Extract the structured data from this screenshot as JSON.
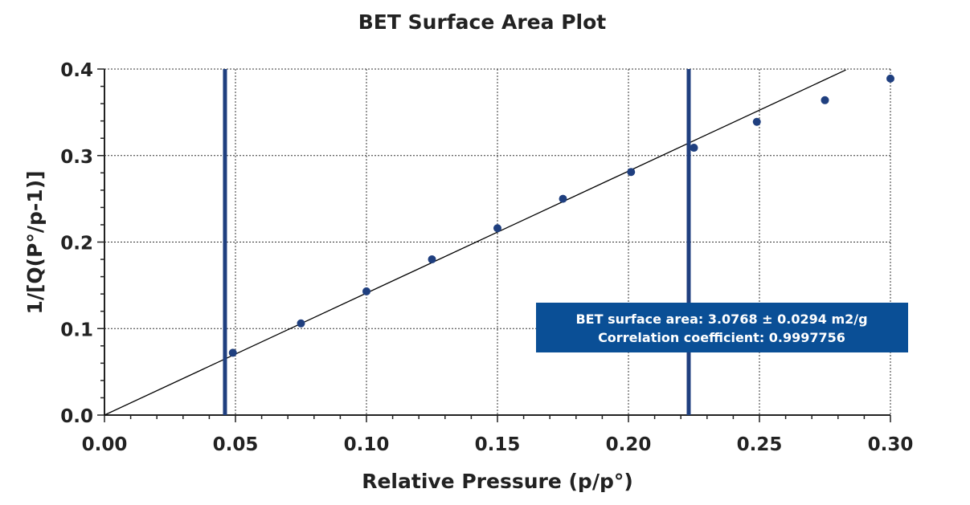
{
  "chart_data": {
    "type": "scatter",
    "title": "BET Surface Area Plot",
    "xlabel": "Relative Pressure (p/p°)",
    "ylabel": "1/[Q(P°/p-1)]",
    "xlim": [
      0.0,
      0.3
    ],
    "ylim": [
      0.0,
      0.4
    ],
    "x_ticks": [
      "0.00",
      "0.05",
      "0.10",
      "0.15",
      "0.20",
      "0.25",
      "0.30"
    ],
    "y_ticks": [
      "0.0",
      "0.1",
      "0.2",
      "0.3",
      "0.4"
    ],
    "grid": true,
    "series": [
      {
        "color": "#1f3f7f",
        "points": [
          {
            "x": 0.049,
            "y": 0.072
          },
          {
            "x": 0.075,
            "y": 0.106
          },
          {
            "x": 0.1,
            "y": 0.143
          },
          {
            "x": 0.125,
            "y": 0.18
          },
          {
            "x": 0.15,
            "y": 0.216
          },
          {
            "x": 0.175,
            "y": 0.25
          },
          {
            "x": 0.201,
            "y": 0.281
          },
          {
            "x": 0.225,
            "y": 0.309
          },
          {
            "x": 0.249,
            "y": 0.339
          },
          {
            "x": 0.275,
            "y": 0.364
          },
          {
            "x": 0.3,
            "y": 0.389
          }
        ]
      }
    ],
    "fit_line": {
      "x_start": 0.0,
      "y_start": 0.0,
      "x_end": 0.283,
      "y_end": 0.399,
      "color": "#000000"
    },
    "range_markers": [
      {
        "x": 0.046,
        "color": "#1f3f7f"
      },
      {
        "x": 0.223,
        "color": "#1f3f7f"
      }
    ],
    "annotation": {
      "lines": [
        "BET surface area: 3.0768 ± 0.0294 m2/g",
        "Correlation coefficient: 0.9997756"
      ],
      "background": "#0a4f96",
      "placement": "lower-right"
    }
  }
}
